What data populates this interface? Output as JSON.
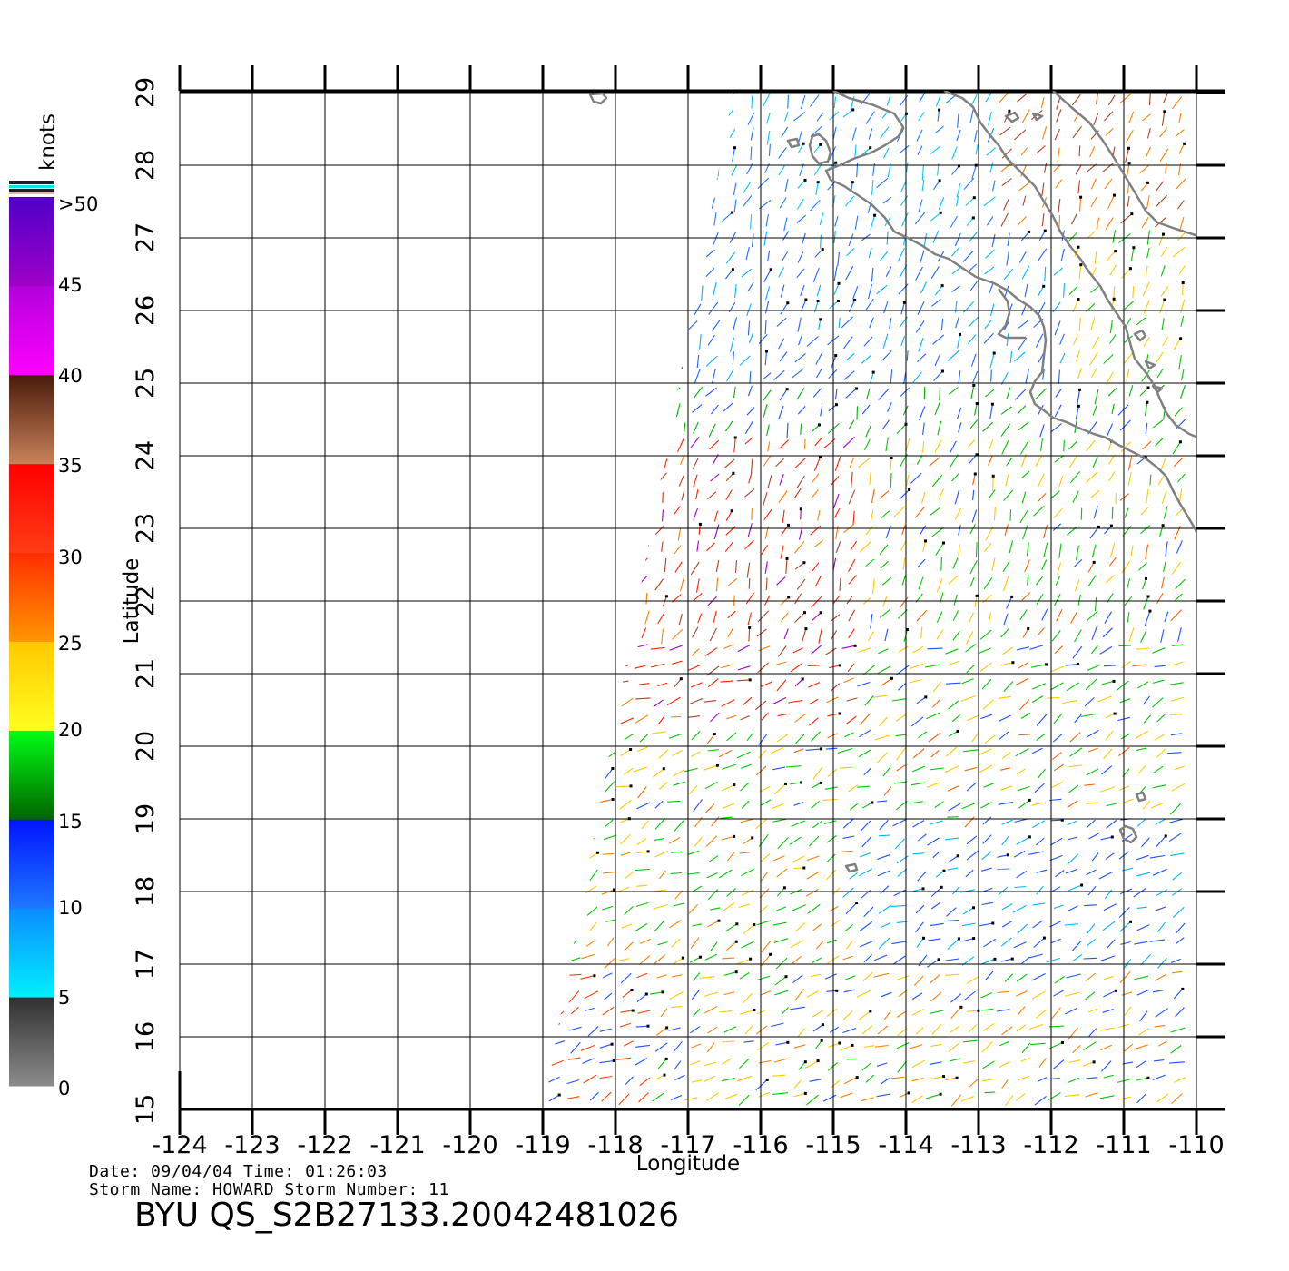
{
  "map": {
    "lon_ticks": [
      "-124",
      "-123",
      "-122",
      "-121",
      "-120",
      "-119",
      "-118",
      "-117",
      "-116",
      "-115",
      "-114",
      "-113",
      "-112",
      "-111",
      "-110"
    ],
    "lat_ticks": [
      "15",
      "16",
      "17",
      "18",
      "19",
      "20",
      "21",
      "22",
      "23",
      "24",
      "25",
      "26",
      "27",
      "28",
      "29"
    ],
    "xlabel": "Longitude",
    "ylabel": "Latitude",
    "lon_range": [
      -124,
      -109.6
    ],
    "lat_range": [
      15,
      29
    ],
    "grid": true,
    "coastline_color": "#808080"
  },
  "colorbar": {
    "unit": "knots",
    "labels": [
      ">50",
      "45",
      "40",
      "35",
      "30",
      "25",
      "20",
      "15",
      "10",
      "5",
      "0"
    ],
    "stops": [
      {
        "from": 0,
        "to": 5,
        "top": "#303030",
        "bottom": "#8c8c8c"
      },
      {
        "from": 5,
        "to": 10,
        "top": "#0a8cff",
        "bottom": "#00f0ff"
      },
      {
        "from": 10,
        "to": 15,
        "top": "#0014ff",
        "bottom": "#1e78ff"
      },
      {
        "from": 15,
        "to": 20,
        "top": "#00ff14",
        "bottom": "#006400"
      },
      {
        "from": 20,
        "to": 25,
        "top": "#ffc800",
        "bottom": "#ffff1e"
      },
      {
        "from": 25,
        "to": 30,
        "top": "#ff2d00",
        "bottom": "#ff9600"
      },
      {
        "from": 30,
        "to": 35,
        "top": "#ff0000",
        "bottom": "#ff3c14"
      },
      {
        "from": 35,
        "to": 40,
        "top": "#4a1a0a",
        "bottom": "#c8825a"
      },
      {
        "from": 40,
        "to": 45,
        "top": "#b400dc",
        "bottom": "#ff00ff"
      },
      {
        "from": 45,
        "to": 50,
        "top": "#5000c8",
        "bottom": "#a000c8"
      }
    ]
  },
  "footer": {
    "line1": "Date: 09/04/04   Time: 01:26:03",
    "line2": "Storm Name: HOWARD   Storm Number: 11",
    "product": "BYU QS_S2B27133.20042481026"
  }
}
